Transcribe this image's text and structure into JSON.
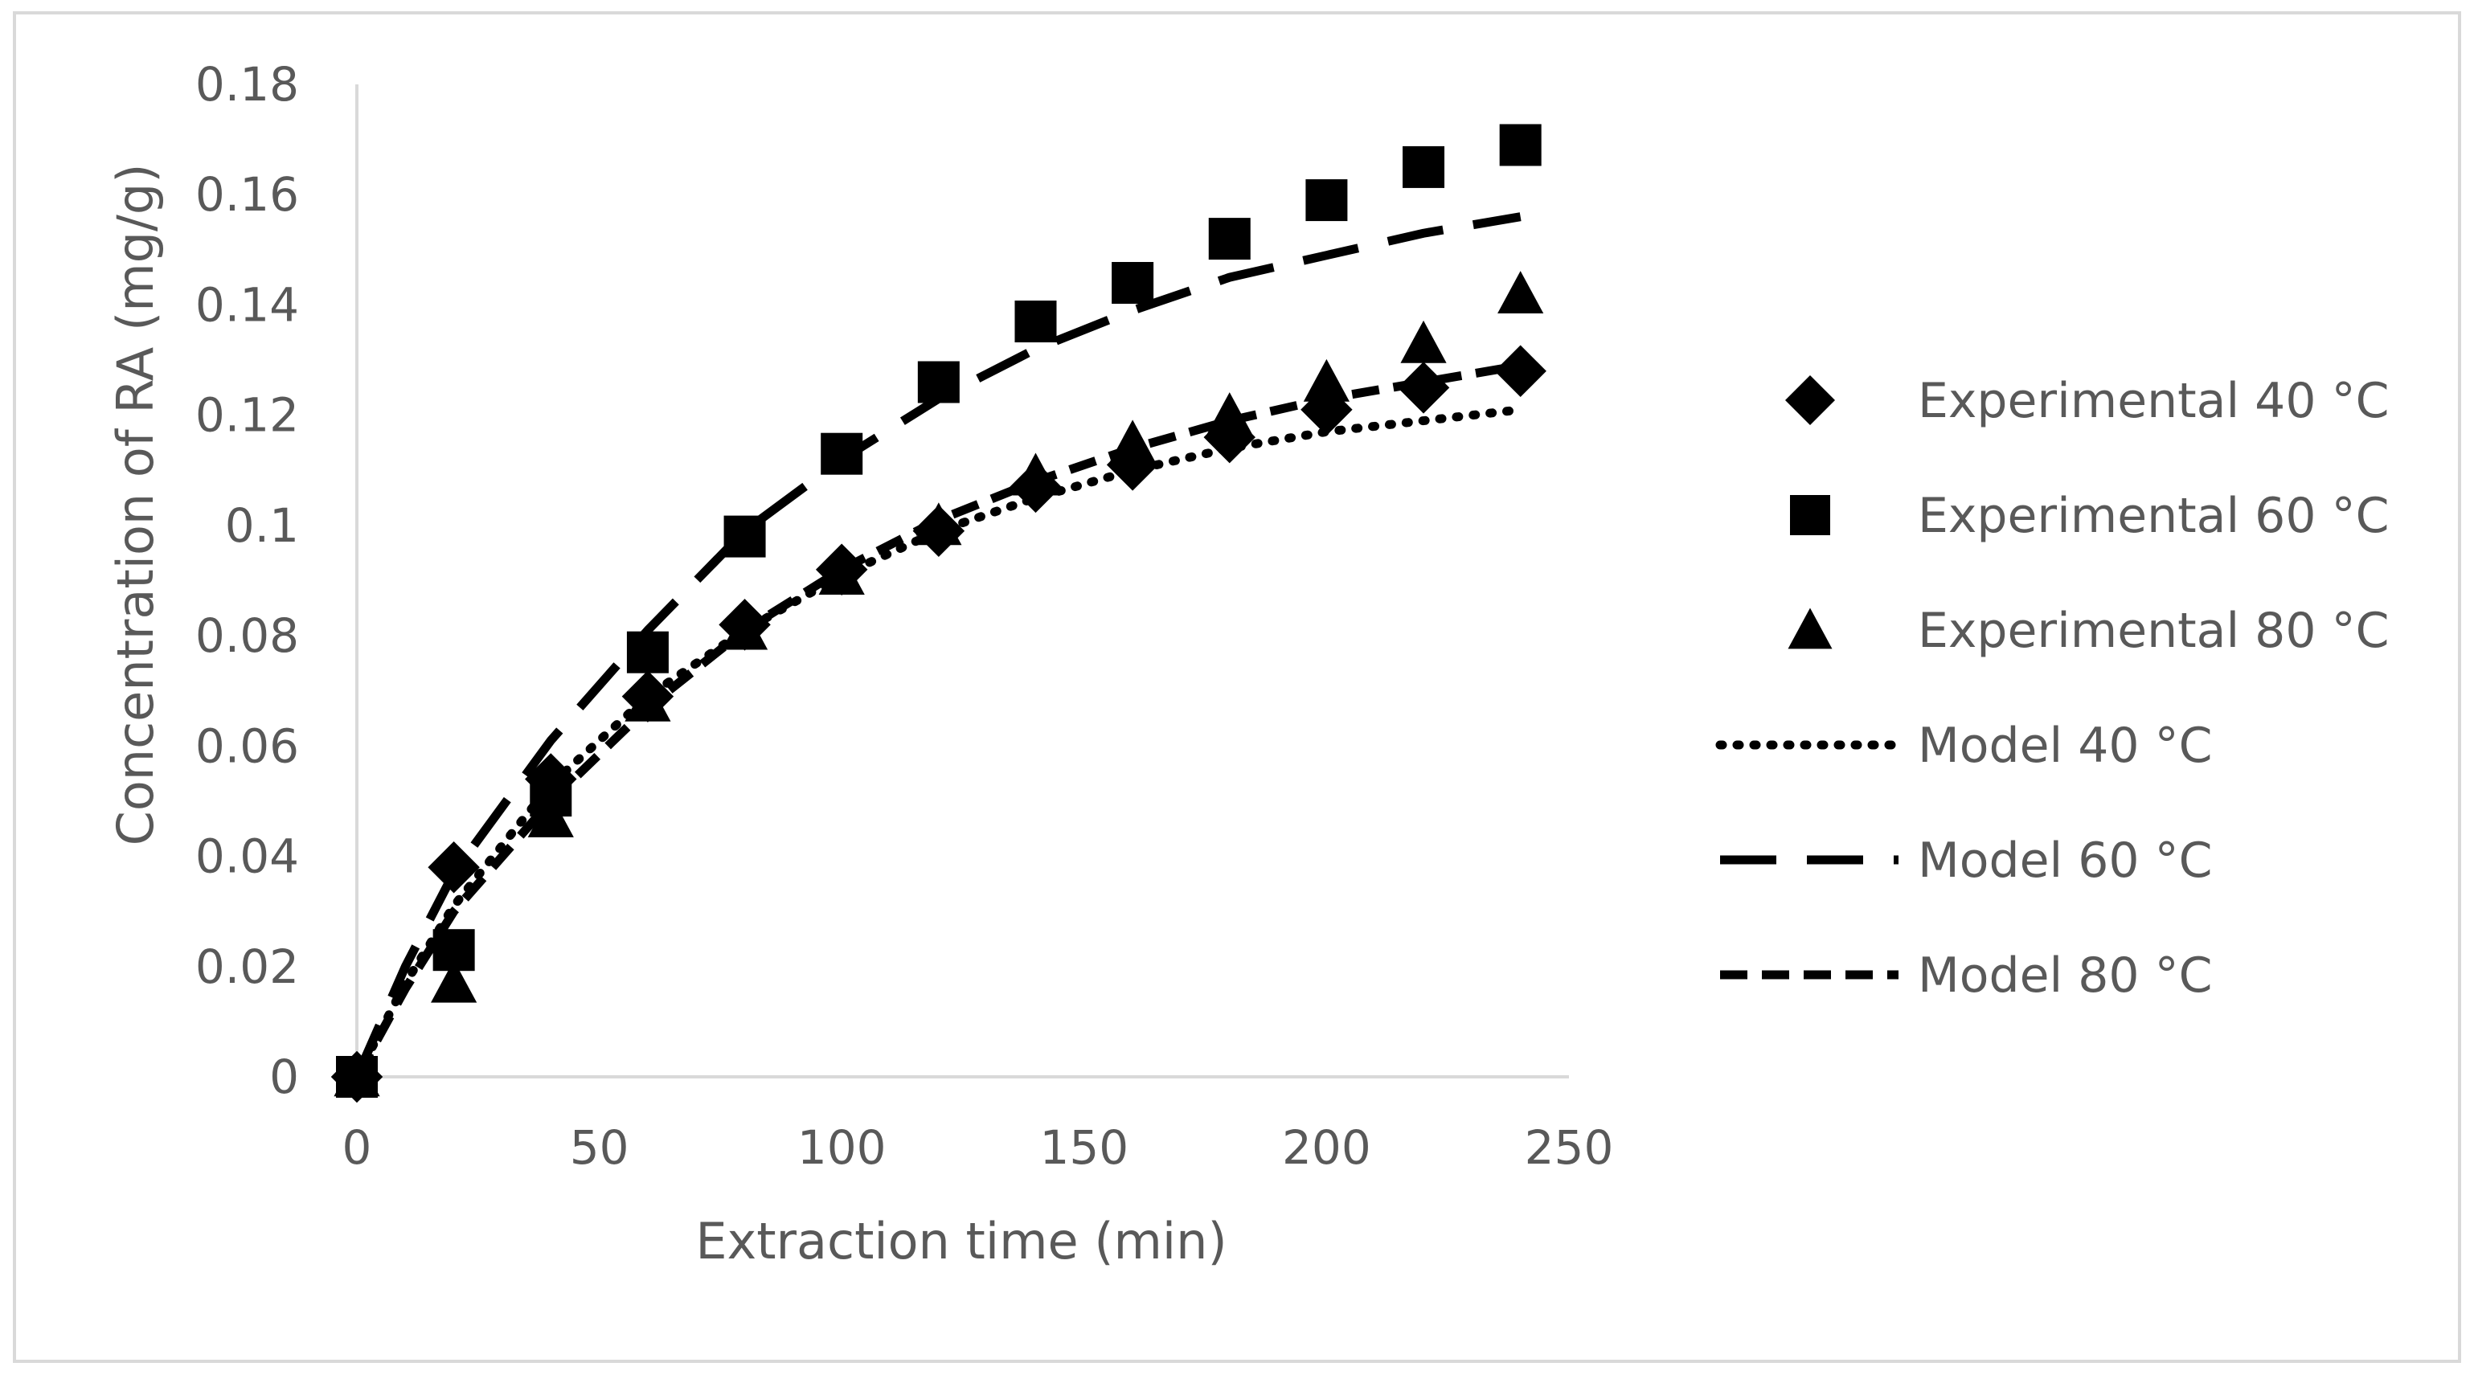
{
  "chart_data": {
    "type": "scatter",
    "title": "",
    "xlabel": "Extraction time (min)",
    "ylabel": "Concentration of RA (mg/g)",
    "xlim": [
      0,
      250
    ],
    "ylim": [
      0,
      0.18
    ],
    "x_ticks": [
      0,
      50,
      100,
      150,
      200,
      250
    ],
    "y_ticks": [
      0,
      0.02,
      0.04,
      0.06,
      0.08,
      0.1,
      0.12,
      0.14,
      0.16,
      0.18
    ],
    "x_tick_labels": [
      "0",
      "50",
      "100",
      "150",
      "200",
      "250"
    ],
    "y_tick_labels": [
      "0",
      "0.02",
      "0.04",
      "0.06",
      "0.08",
      "0.1",
      "0.12",
      "0.14",
      "0.16",
      "0.18"
    ],
    "grid": false,
    "legend_position": "right",
    "colors": {
      "series": "#000000",
      "text": "#595959",
      "axis": "#d9d9d9",
      "border": "#d9d9d9"
    },
    "series": [
      {
        "name": "Experimental 40 °C",
        "kind": "marker",
        "marker": "diamond",
        "x": [
          0,
          20,
          40,
          60,
          80,
          100,
          120,
          140,
          160,
          180,
          200,
          220,
          240
        ],
        "y": [
          0,
          0.038,
          0.054,
          0.069,
          0.082,
          0.092,
          0.099,
          0.107,
          0.111,
          0.116,
          0.121,
          0.125,
          0.128
        ]
      },
      {
        "name": "Experimental 60 °C",
        "kind": "marker",
        "marker": "square",
        "x": [
          0,
          20,
          40,
          60,
          80,
          100,
          120,
          140,
          160,
          180,
          200,
          220,
          240
        ],
        "y": [
          0,
          0.023,
          0.051,
          0.077,
          0.098,
          0.113,
          0.126,
          0.137,
          0.144,
          0.152,
          0.159,
          0.165,
          0.169
        ]
      },
      {
        "name": "Experimental 80 °C",
        "kind": "marker",
        "marker": "triangle",
        "x": [
          0,
          20,
          40,
          60,
          80,
          100,
          120,
          140,
          160,
          180,
          200,
          220,
          240
        ],
        "y": [
          0,
          0.017,
          0.047,
          0.068,
          0.081,
          0.091,
          0.1,
          0.109,
          0.115,
          0.12,
          0.126,
          0.133,
          0.142
        ]
      },
      {
        "name": "Model 40 °C",
        "kind": "line",
        "style": "dotted",
        "x": [
          0,
          10,
          20,
          40,
          60,
          80,
          100,
          120,
          140,
          160,
          180,
          200,
          220,
          240
        ],
        "y": [
          0,
          0.017,
          0.031,
          0.053,
          0.069,
          0.081,
          0.091,
          0.099,
          0.105,
          0.11,
          0.114,
          0.117,
          0.119,
          0.121
        ]
      },
      {
        "name": "Model 60 °C",
        "kind": "line",
        "style": "long-dash",
        "x": [
          0,
          10,
          20,
          40,
          60,
          80,
          100,
          120,
          140,
          160,
          180,
          200,
          220,
          240
        ],
        "y": [
          0,
          0.02,
          0.037,
          0.061,
          0.081,
          0.099,
          0.112,
          0.123,
          0.132,
          0.139,
          0.145,
          0.149,
          0.153,
          0.156
        ]
      },
      {
        "name": "Model 80 °C",
        "kind": "line",
        "style": "short-dash",
        "x": [
          0,
          10,
          20,
          40,
          60,
          80,
          100,
          120,
          140,
          160,
          180,
          200,
          220,
          240
        ],
        "y": [
          0,
          0.016,
          0.03,
          0.05,
          0.067,
          0.081,
          0.092,
          0.101,
          0.108,
          0.114,
          0.119,
          0.123,
          0.126,
          0.129
        ]
      }
    ]
  }
}
